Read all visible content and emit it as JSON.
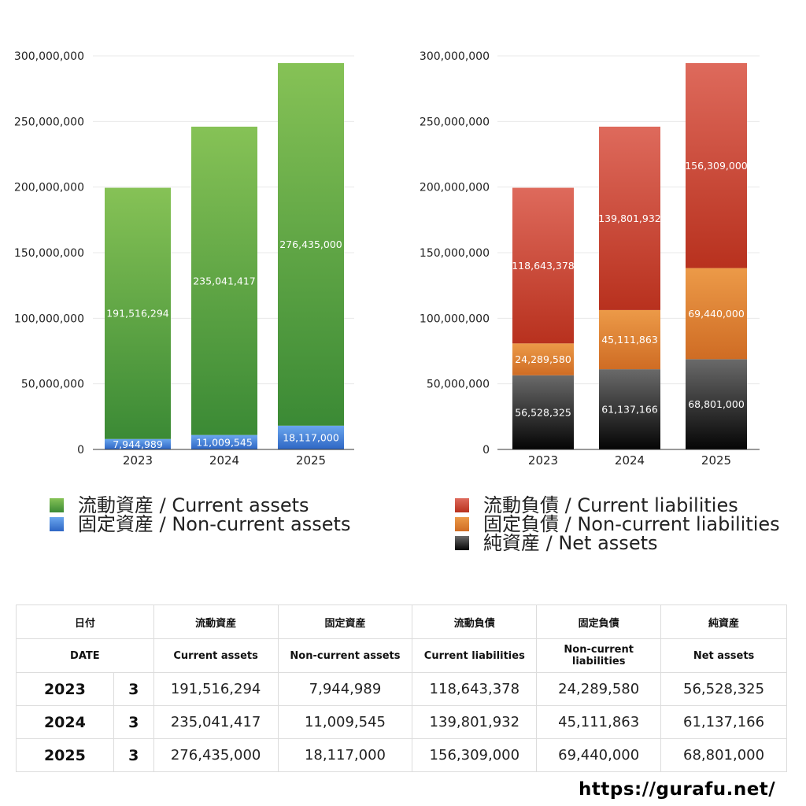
{
  "chart_data": [
    {
      "type": "bar",
      "stacked": true,
      "categories": [
        "2023",
        "2024",
        "2025"
      ],
      "series": [
        {
          "name": "固定資産 / Non-current assets",
          "values": [
            7944989,
            11009545,
            18117000
          ],
          "labels": [
            "7,944,989",
            "11,009,545",
            "18,117,000"
          ],
          "color": "#4a86d8"
        },
        {
          "name": "流動資産 / Current assets",
          "values": [
            191516294,
            235041417,
            276435000
          ],
          "labels": [
            "191,516,294",
            "235,041,417",
            "276,435,000"
          ],
          "color": "#5aa83e"
        }
      ],
      "ylim": [
        0,
        300000000
      ],
      "yticks": [
        "0",
        "50,000,000",
        "100,000,000",
        "150,000,000",
        "200,000,000",
        "250,000,000",
        "300,000,000"
      ],
      "grid": true,
      "legend_placement": "bottom"
    },
    {
      "type": "bar",
      "stacked": true,
      "categories": [
        "2023",
        "2024",
        "2025"
      ],
      "series": [
        {
          "name": "純資産 / Net assets",
          "values": [
            56528325,
            61137166,
            68801000
          ],
          "labels": [
            "56,528,325",
            "61,137,166",
            "68,801,000"
          ],
          "color": "#333333"
        },
        {
          "name": "固定負債 / Non-current liabilities",
          "values": [
            24289580,
            45111863,
            69440000
          ],
          "labels": [
            "24,289,580",
            "45,111,863",
            "69,440,000"
          ],
          "color": "#e08a36"
        },
        {
          "name": "流動負債 / Current liabilities",
          "values": [
            118643378,
            139801932,
            156309000
          ],
          "labels": [
            "118,643,378",
            "139,801,932",
            "156,309,000"
          ],
          "color": "#d4503d"
        }
      ],
      "ylim": [
        0,
        300000000
      ],
      "yticks": [
        "0",
        "50,000,000",
        "100,000,000",
        "150,000,000",
        "200,000,000",
        "250,000,000",
        "300,000,000"
      ],
      "grid": true,
      "legend_placement": "bottom"
    }
  ],
  "legend_left": [
    {
      "label": "流動資産 / Current assets",
      "color": "#5aa83e"
    },
    {
      "label": "固定資産 / Non-current assets",
      "color": "#4a86d8"
    }
  ],
  "legend_right": [
    {
      "label": "流動負債 / Current liabilities",
      "color": "#d4503d"
    },
    {
      "label": "固定負債 / Non-current liabilities",
      "color": "#e08a36"
    },
    {
      "label": "純資産 / Net assets",
      "color": "#222222"
    }
  ],
  "table": {
    "header_jp": [
      "日付",
      "",
      "流動資産",
      "固定資産",
      "流動負債",
      "固定負債",
      "純資産"
    ],
    "header_en": [
      "DATE",
      "",
      "Current assets",
      "Non-current assets",
      "Current liabilities",
      "Non-current liabilities",
      "Net assets"
    ],
    "rows": [
      [
        "2023",
        "3",
        "191,516,294",
        "7,944,989",
        "118,643,378",
        "24,289,580",
        "56,528,325"
      ],
      [
        "2024",
        "3",
        "235,041,417",
        "11,009,545",
        "139,801,932",
        "45,111,863",
        "61,137,166"
      ],
      [
        "2025",
        "3",
        "276,435,000",
        "18,117,000",
        "156,309,000",
        "69,440,000",
        "68,801,000"
      ]
    ]
  },
  "site_url": "https://gurafu.net/"
}
